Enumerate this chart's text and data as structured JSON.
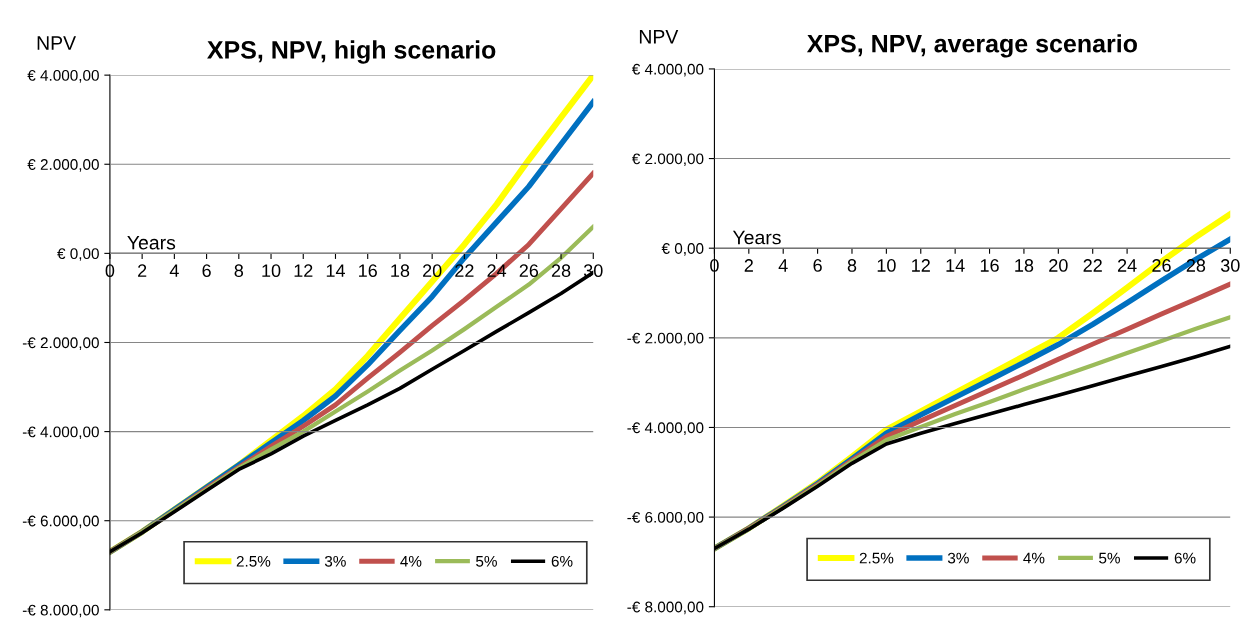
{
  "chart_data": [
    {
      "type": "line",
      "title": "XPS, NPV, high scenario",
      "xlabel": "Years",
      "ylabel": "NPV",
      "x": [
        0,
        2,
        4,
        6,
        8,
        10,
        12,
        14,
        16,
        18,
        20,
        22,
        24,
        26,
        28,
        30
      ],
      "xlim": [
        0,
        30
      ],
      "xticks": [
        0,
        2,
        4,
        6,
        8,
        10,
        12,
        14,
        16,
        18,
        20,
        22,
        24,
        26,
        28,
        30
      ],
      "ylim": [
        -8000,
        4000
      ],
      "yticks": [
        {
          "value": -8000,
          "label": "-€ 8.000,00"
        },
        {
          "value": -6000,
          "label": "-€ 6.000,00"
        },
        {
          "value": -4000,
          "label": "-€ 4.000,00"
        },
        {
          "value": -2000,
          "label": "-€ 2.000,00"
        },
        {
          "value": 0,
          "label": "€ 0,00"
        },
        {
          "value": 2000,
          "label": "€ 2.000,00"
        },
        {
          "value": 4000,
          "label": "€ 4.000,00"
        }
      ],
      "grid": "y",
      "legend": "bottom",
      "marker": "none",
      "line_style": "solid",
      "series": [
        {
          "name": "2.5%",
          "color": "#ffff00",
          "values": [
            -6700,
            -6250,
            -5750,
            -5250,
            -4750,
            -4200,
            -3650,
            -3050,
            -2300,
            -1460,
            -630,
            200,
            1100,
            2100,
            3050,
            4000
          ]
        },
        {
          "name": "3%",
          "color": "#0070c0",
          "values": [
            -6700,
            -6250,
            -5750,
            -5250,
            -4750,
            -4250,
            -3750,
            -3200,
            -2500,
            -1730,
            -970,
            -100,
            700,
            1500,
            2450,
            3400
          ]
        },
        {
          "name": "4%",
          "color": "#c0504d",
          "values": [
            -6700,
            -6250,
            -5770,
            -5280,
            -4800,
            -4330,
            -3880,
            -3400,
            -2800,
            -2220,
            -1620,
            -1050,
            -450,
            200,
            1000,
            1800
          ]
        },
        {
          "name": "5%",
          "color": "#9bbb59",
          "values": [
            -6700,
            -6250,
            -5770,
            -5300,
            -4820,
            -4400,
            -4000,
            -3550,
            -3100,
            -2630,
            -2180,
            -1700,
            -1200,
            -700,
            -100,
            600
          ]
        },
        {
          "name": "6%",
          "color": "#000000",
          "values": [
            -6700,
            -6270,
            -5800,
            -5320,
            -4850,
            -4500,
            -4100,
            -3750,
            -3400,
            -3030,
            -2600,
            -2180,
            -1750,
            -1330,
            -900,
            -430
          ]
        }
      ]
    },
    {
      "type": "line",
      "title": "XPS, NPV, average scenario",
      "xlabel": "Years",
      "ylabel": "NPV",
      "x": [
        0,
        2,
        4,
        6,
        8,
        10,
        12,
        14,
        16,
        18,
        20,
        22,
        24,
        26,
        28,
        30
      ],
      "xlim": [
        0,
        30
      ],
      "xticks": [
        0,
        2,
        4,
        6,
        8,
        10,
        12,
        14,
        16,
        18,
        20,
        22,
        24,
        26,
        28,
        30
      ],
      "ylim": [
        -8000,
        4000
      ],
      "yticks": [
        {
          "value": -8000,
          "label": "-€ 8.000,00"
        },
        {
          "value": -6000,
          "label": "-€ 6.000,00"
        },
        {
          "value": -4000,
          "label": "-€ 4.000,00"
        },
        {
          "value": -2000,
          "label": "-€ 2.000,00"
        },
        {
          "value": 0,
          "label": "€ 0,00"
        },
        {
          "value": 2000,
          "label": "€ 2.000,00"
        },
        {
          "value": 4000,
          "label": "€ 4.000,00"
        }
      ],
      "grid": "y",
      "legend": "bottom",
      "marker": "none",
      "line_style": "solid",
      "series": [
        {
          "name": "2.5%",
          "color": "#ffff00",
          "values": [
            -6700,
            -6250,
            -5750,
            -5230,
            -4650,
            -4050,
            -3640,
            -3230,
            -2820,
            -2410,
            -2000,
            -1450,
            -880,
            -300,
            250,
            760
          ]
        },
        {
          "name": "3%",
          "color": "#0070c0",
          "values": [
            -6700,
            -6250,
            -5760,
            -5250,
            -4700,
            -4130,
            -3720,
            -3330,
            -2940,
            -2550,
            -2150,
            -1700,
            -1220,
            -730,
            -250,
            200
          ]
        },
        {
          "name": "4%",
          "color": "#c0504d",
          "values": [
            -6700,
            -6250,
            -5770,
            -5270,
            -4730,
            -4200,
            -3850,
            -3510,
            -3170,
            -2830,
            -2480,
            -2140,
            -1810,
            -1470,
            -1140,
            -800
          ]
        },
        {
          "name": "5%",
          "color": "#9bbb59",
          "values": [
            -6700,
            -6260,
            -5780,
            -5290,
            -4760,
            -4280,
            -3990,
            -3700,
            -3430,
            -3150,
            -2880,
            -2610,
            -2340,
            -2070,
            -1800,
            -1540
          ]
        },
        {
          "name": "6%",
          "color": "#000000",
          "values": [
            -6700,
            -6270,
            -5800,
            -5310,
            -4800,
            -4370,
            -4130,
            -3910,
            -3700,
            -3490,
            -3280,
            -3070,
            -2850,
            -2640,
            -2420,
            -2190
          ]
        }
      ]
    }
  ]
}
